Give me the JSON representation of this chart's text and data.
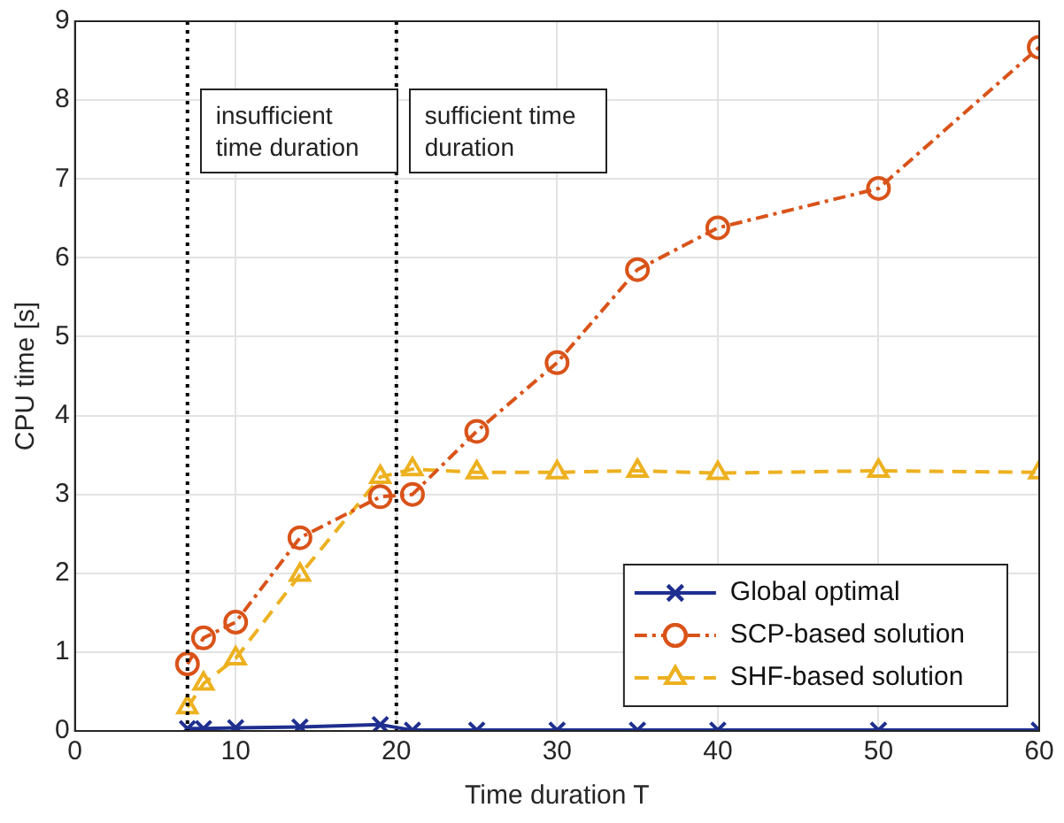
{
  "chart_data": {
    "type": "line",
    "xlabel": "Time duration T",
    "ylabel": "CPU time [s]",
    "xlim": [
      0,
      60
    ],
    "xticks": [
      0,
      10,
      20,
      30,
      40,
      50,
      60
    ],
    "ylim": [
      0,
      9
    ],
    "yticks": [
      0,
      1,
      2,
      3,
      4,
      5,
      6,
      7,
      8,
      9
    ],
    "grid": true,
    "legend": "bottom right",
    "ref_lines": [
      {
        "axis": "x",
        "value": 7,
        "color": "#000000",
        "line_style": "dotted"
      },
      {
        "axis": "x",
        "value": 20,
        "color": "#000000",
        "line_style": "dotted"
      }
    ],
    "annotations": [
      "insufficient time duration",
      "sufficient time duration"
    ],
    "series": [
      {
        "name": "Global optimal",
        "color": "#1f2f8f",
        "marker": "cross",
        "line_style": "solid",
        "x": [
          7,
          8,
          10,
          14,
          19,
          21,
          25,
          30,
          35,
          40,
          50,
          60
        ],
        "values": [
          0.03,
          0.03,
          0.04,
          0.05,
          0.08,
          0.01,
          0.01,
          0.01,
          0.01,
          0.01,
          0.01,
          0.01
        ]
      },
      {
        "name": "SCP-based solution",
        "color": "#d95319",
        "marker": "circle",
        "line_style": "dashdot",
        "x": [
          7,
          8,
          10,
          14,
          19,
          21,
          25,
          30,
          35,
          40,
          50,
          60
        ],
        "values": [
          0.85,
          1.18,
          1.38,
          2.45,
          2.97,
          3.0,
          3.8,
          4.67,
          5.85,
          6.38,
          6.88,
          8.67
        ]
      },
      {
        "name": "SHF-based solution",
        "color": "#edb120",
        "marker": "triangle",
        "line_style": "dashed",
        "x": [
          7,
          8,
          10,
          14,
          19,
          21,
          25,
          30,
          35,
          40,
          50,
          60
        ],
        "values": [
          0.3,
          0.6,
          0.92,
          1.98,
          3.22,
          3.32,
          3.28,
          3.28,
          3.3,
          3.27,
          3.3,
          3.28
        ]
      }
    ]
  }
}
